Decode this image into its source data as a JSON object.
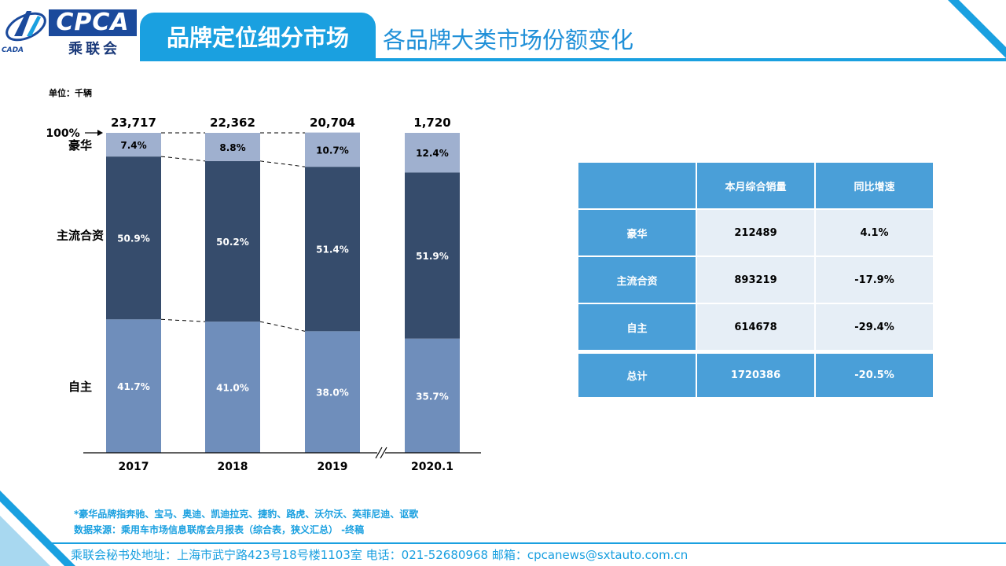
{
  "header": {
    "logo_text": "CPCA",
    "logo_cn": "乘联会",
    "logo_small": "CADA",
    "section": "品牌定位细分市场",
    "title": "各品牌大类市场份额变化"
  },
  "unit": "单位：千辆",
  "colors": {
    "accent": "#1aa0e0",
    "luxury": "#9fb0cf",
    "mainstream": "#364c6c",
    "domestic": "#6f8ebb",
    "table_head": "#4a9fd8",
    "table_cell": "#e6eef6"
  },
  "chart_data": {
    "type": "bar",
    "stacked": "percent",
    "categories": [
      "2017",
      "2018",
      "2019",
      "2020.1"
    ],
    "totals": [
      "23,717",
      "22,362",
      "20,704",
      "1,720"
    ],
    "series": [
      {
        "name": "自主",
        "values": [
          41.7,
          41.0,
          38.0,
          35.7
        ],
        "labels": [
          "41.7%",
          "41.0%",
          "38.0%",
          "35.7%"
        ]
      },
      {
        "name": "主流合资",
        "values": [
          50.9,
          50.2,
          51.4,
          51.9
        ],
        "labels": [
          "50.9%",
          "50.2%",
          "51.4%",
          "51.9%"
        ]
      },
      {
        "name": "豪华",
        "values": [
          7.4,
          8.8,
          10.7,
          12.4
        ],
        "labels": [
          "7.4%",
          "8.8%",
          "10.7%",
          "12.4%"
        ]
      }
    ],
    "hundred_label": "100%",
    "ylim": [
      0,
      100
    ],
    "axis_break_between": [
      "2019",
      "2020.1"
    ]
  },
  "table": {
    "headers": [
      "",
      "本月综合销量",
      "同比增速"
    ],
    "rows": [
      {
        "label": "豪华",
        "sales": "212489",
        "growth": "4.1%"
      },
      {
        "label": "主流合资",
        "sales": "893219",
        "growth": "-17.9%"
      },
      {
        "label": "自主",
        "sales": "614678",
        "growth": "-29.4%"
      }
    ],
    "total": {
      "label": "总计",
      "sales": "1720386",
      "growth": "-20.5%"
    }
  },
  "notes": {
    "line1": "*豪华品牌指奔驰、宝马、奥迪、凯迪拉克、捷豹、路虎、沃尔沃、英菲尼迪、讴歌",
    "line2": "数据来源：乘用车市场信息联席会月报表（综合表，狭义汇总） -终稿"
  },
  "footer": "乘联会秘书处地址：上海市武宁路423号18号楼1103室  电话：021-52680968   邮箱：cpcanews@sxtauto.com.cn"
}
